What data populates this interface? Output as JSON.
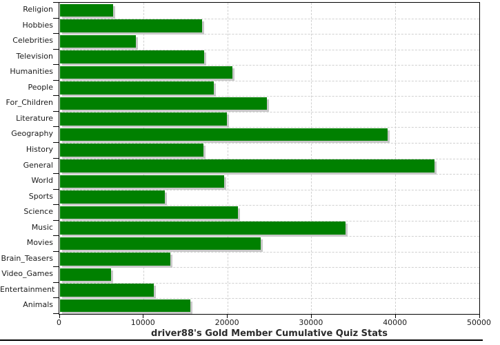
{
  "chart_data": {
    "type": "bar",
    "orientation": "horizontal",
    "title": "driver88's Gold Member Cumulative Quiz Stats",
    "categories": [
      "Religion",
      "Hobbies",
      "Celebrities",
      "Television",
      "Humanities",
      "People",
      "For_Children",
      "Literature",
      "Geography",
      "History",
      "General",
      "World",
      "Sports",
      "Science",
      "Music",
      "Movies",
      "Brain_Teasers",
      "Video_Games",
      "Entertainment",
      "Animals"
    ],
    "values": [
      6300,
      16900,
      9000,
      17200,
      20500,
      18300,
      24600,
      19900,
      39000,
      17100,
      44600,
      19500,
      12500,
      21200,
      34000,
      23900,
      13100,
      6100,
      11200,
      15500
    ],
    "xlabel": "",
    "ylabel": "",
    "xlim": [
      0,
      50000
    ],
    "x_ticks": [
      0,
      10000,
      20000,
      30000,
      40000,
      50000
    ],
    "grid": true,
    "legend": "none",
    "bar_color": "#008000",
    "bar_shadow_color": "#c8c8c8",
    "gridline_color": "#d0d0d0",
    "axis_color": "#000000",
    "text_color": "#1a1a1a",
    "title_color": "#2b2b2b"
  }
}
